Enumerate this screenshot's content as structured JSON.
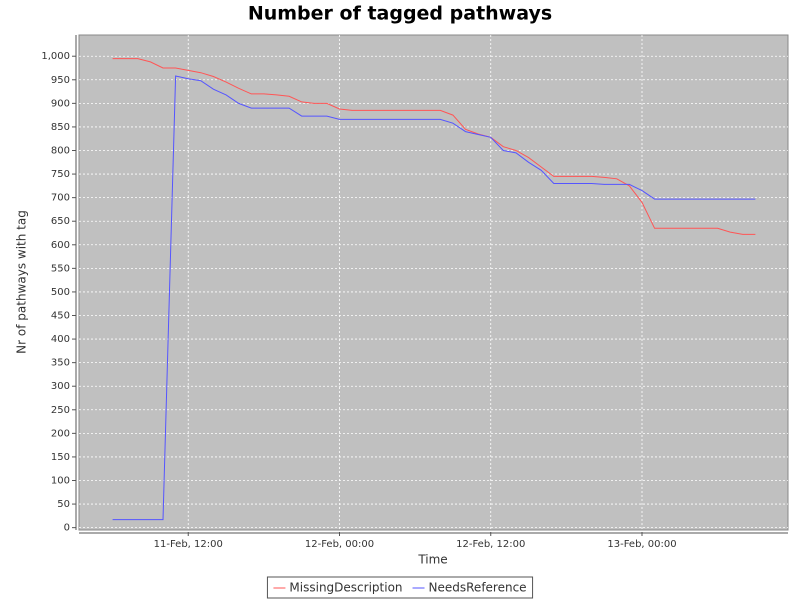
{
  "chart_data": {
    "type": "line",
    "title": "Number of tagged pathways",
    "x_label": "Time",
    "y_label": "Nr of pathways with tag",
    "x": [
      "11-Feb, 06:00",
      "11-Feb, 07:00",
      "11-Feb, 08:00",
      "11-Feb, 09:00",
      "11-Feb, 10:00",
      "11-Feb, 11:00",
      "11-Feb, 12:00",
      "11-Feb, 13:00",
      "11-Feb, 14:00",
      "11-Feb, 15:00",
      "11-Feb, 16:00",
      "11-Feb, 17:00",
      "11-Feb, 18:00",
      "11-Feb, 19:00",
      "11-Feb, 20:00",
      "11-Feb, 21:00",
      "11-Feb, 22:00",
      "11-Feb, 23:00",
      "12-Feb, 00:00",
      "12-Feb, 01:00",
      "12-Feb, 02:00",
      "12-Feb, 03:00",
      "12-Feb, 04:00",
      "12-Feb, 05:00",
      "12-Feb, 06:00",
      "12-Feb, 07:00",
      "12-Feb, 08:00",
      "12-Feb, 09:00",
      "12-Feb, 10:00",
      "12-Feb, 11:00",
      "12-Feb, 12:00",
      "12-Feb, 13:00",
      "12-Feb, 14:00",
      "12-Feb, 15:00",
      "12-Feb, 16:00",
      "12-Feb, 17:00",
      "12-Feb, 18:00",
      "12-Feb, 19:00",
      "12-Feb, 20:00",
      "12-Feb, 21:00",
      "12-Feb, 22:00",
      "12-Feb, 23:00",
      "13-Feb, 00:00",
      "13-Feb, 01:00",
      "13-Feb, 02:00",
      "13-Feb, 03:00",
      "13-Feb, 04:00",
      "13-Feb, 05:00",
      "13-Feb, 06:00",
      "13-Feb, 07:00",
      "13-Feb, 08:00",
      "13-Feb, 09:00"
    ],
    "series": [
      {
        "name": "MissingDescription",
        "color": "#ff5555",
        "values": [
          995,
          995,
          995,
          988,
          975,
          975,
          970,
          965,
          957,
          945,
          932,
          920,
          920,
          918,
          915,
          903,
          900,
          900,
          888,
          885,
          885,
          885,
          885,
          885,
          885,
          885,
          885,
          875,
          845,
          835,
          828,
          808,
          800,
          785,
          765,
          745,
          745,
          745,
          745,
          743,
          740,
          725,
          690,
          635,
          635,
          635,
          635,
          635,
          635,
          627,
          622,
          622
        ]
      },
      {
        "name": "NeedsReference",
        "color": "#5555ff",
        "values": [
          17,
          17,
          17,
          17,
          17,
          958,
          952,
          948,
          930,
          918,
          900,
          890,
          890,
          890,
          890,
          873,
          873,
          873,
          866,
          866,
          866,
          866,
          866,
          866,
          866,
          866,
          866,
          858,
          840,
          834,
          828,
          800,
          795,
          775,
          758,
          730,
          730,
          730,
          730,
          728,
          728,
          728,
          715,
          697,
          697,
          697,
          697,
          697,
          697,
          697,
          697,
          697
        ]
      }
    ],
    "xlim": [
      "11-Feb, 03:20",
      "13-Feb, 11:35"
    ],
    "xticks": [
      "11-Feb, 12:00",
      "12-Feb, 00:00",
      "12-Feb, 12:00",
      "13-Feb, 00:00"
    ],
    "ylim": [
      -5,
      1045
    ],
    "yticks": [
      0,
      50,
      100,
      150,
      200,
      250,
      300,
      350,
      400,
      450,
      500,
      550,
      600,
      650,
      700,
      750,
      800,
      850,
      900,
      950,
      {
        "value": 1000,
        "label": "1,000"
      }
    ],
    "grid": true,
    "legend": "bottom",
    "background": "#c0c0c0"
  }
}
